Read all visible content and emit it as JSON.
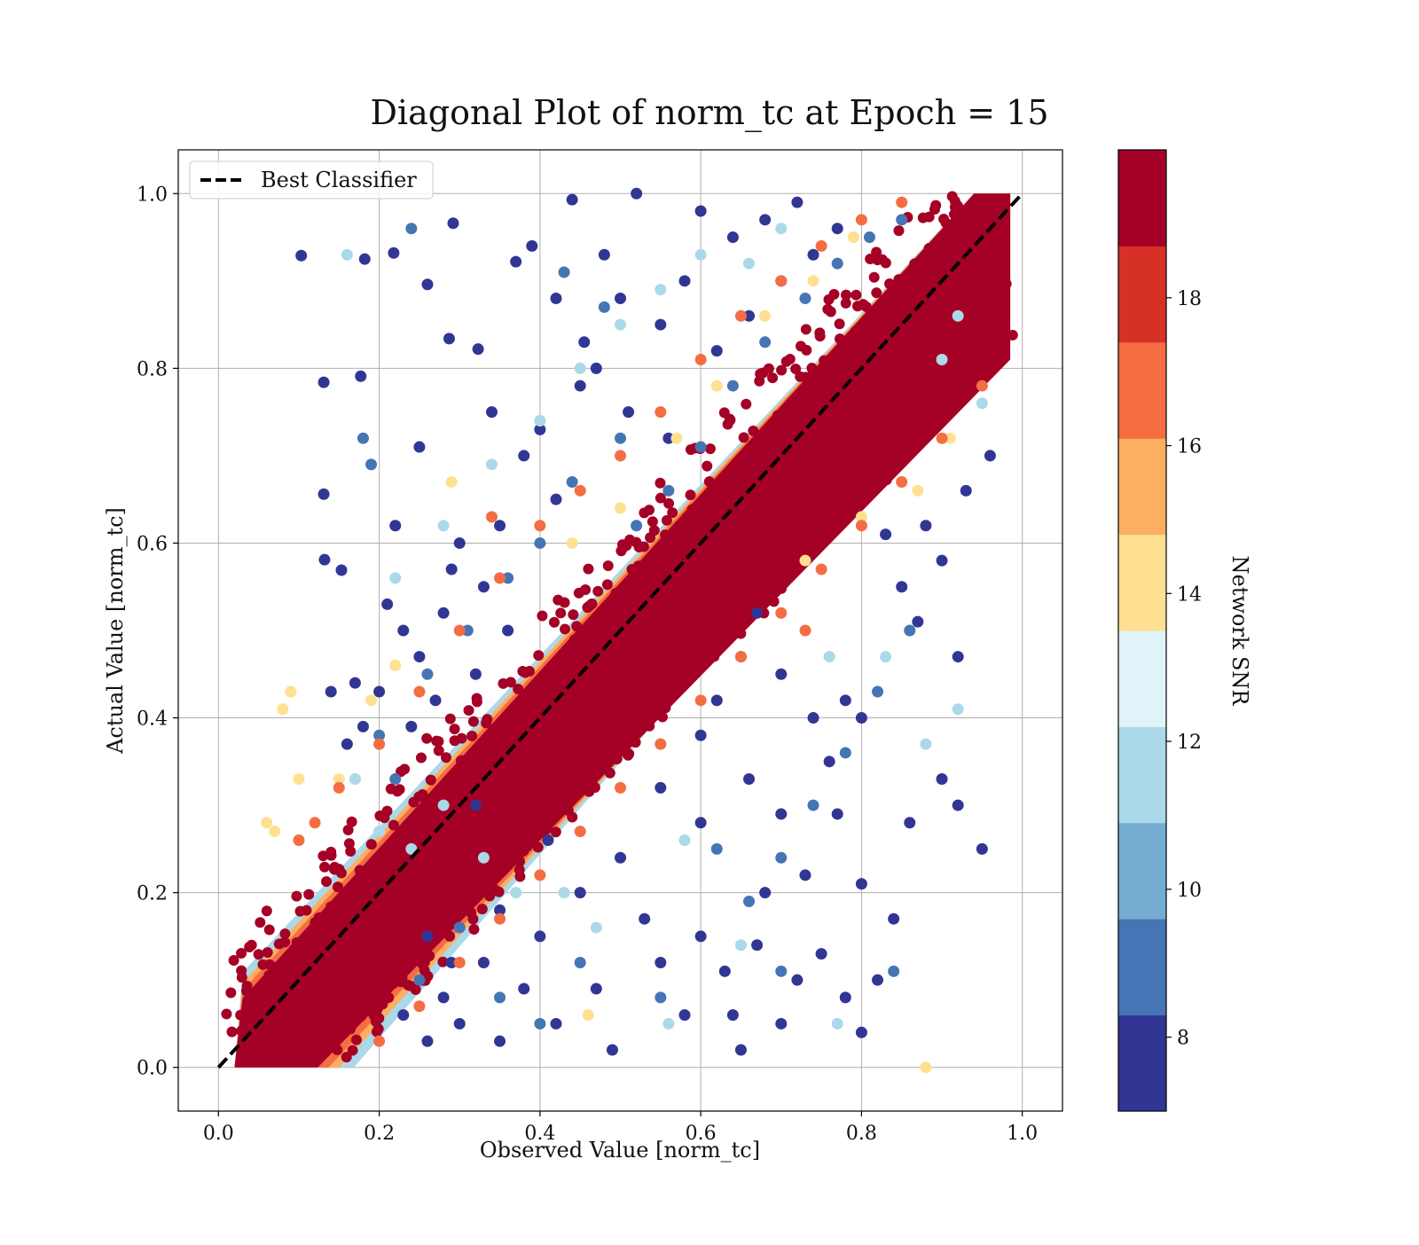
{
  "chart_data": {
    "type": "scatter",
    "title": "Diagonal Plot of norm_tc at Epoch = 15",
    "xlabel": "Observed Value [norm_tc]",
    "ylabel": "Actual Value [norm_tc]",
    "xlim": [
      -0.05,
      1.05
    ],
    "ylim": [
      -0.05,
      1.05
    ],
    "xticks": [
      "0.0",
      "0.2",
      "0.4",
      "0.6",
      "0.8",
      "1.0"
    ],
    "yticks": [
      "0.0",
      "0.2",
      "0.4",
      "0.6",
      "0.8",
      "1.0"
    ],
    "grid": true,
    "legend": {
      "placement": "top-left",
      "entries": [
        "Best Classifier"
      ]
    },
    "reference_line": {
      "name": "Best Classifier",
      "style": "dashed",
      "color": "#000000",
      "x": [
        0.0,
        1.0
      ],
      "y": [
        0.0,
        1.0
      ]
    },
    "colorbar": {
      "label": "Network SNR",
      "range": [
        7,
        20
      ],
      "ticks": [
        "8",
        "10",
        "12",
        "14",
        "16",
        "18"
      ],
      "tick_values": [
        8,
        10,
        12,
        14,
        16,
        18
      ],
      "colors": [
        "#313695",
        "#4575b4",
        "#74add1",
        "#abd9e9",
        "#e0f3f8",
        "#fee090",
        "#fdae61",
        "#f46d43",
        "#d73027",
        "#a50026"
      ]
    },
    "series": [
      {
        "snr_level": "low (7-9)",
        "color": "#313695",
        "points": [
          [
            0.103,
            0.929
          ],
          [
            0.131,
            0.784
          ],
          [
            0.177,
            0.791
          ],
          [
            0.131,
            0.656
          ],
          [
            0.132,
            0.581
          ],
          [
            0.153,
            0.569
          ],
          [
            0.182,
            0.925
          ],
          [
            0.218,
            0.932
          ],
          [
            0.26,
            0.896
          ],
          [
            0.287,
            0.834
          ],
          [
            0.323,
            0.822
          ],
          [
            0.292,
            0.966
          ],
          [
            0.37,
            0.922
          ],
          [
            0.44,
            0.993
          ],
          [
            0.52,
            1.0
          ],
          [
            0.455,
            0.83
          ],
          [
            0.4,
            0.73
          ],
          [
            0.34,
            0.75
          ],
          [
            0.25,
            0.71
          ],
          [
            0.22,
            0.62
          ],
          [
            0.21,
            0.53
          ],
          [
            0.2,
            0.43
          ],
          [
            0.18,
            0.39
          ],
          [
            0.14,
            0.43
          ],
          [
            0.53,
            0.17
          ],
          [
            0.55,
            0.12
          ],
          [
            0.6,
            0.15
          ],
          [
            0.63,
            0.11
          ],
          [
            0.58,
            0.06
          ],
          [
            0.65,
            0.02
          ],
          [
            0.7,
            0.05
          ],
          [
            0.72,
            0.1
          ],
          [
            0.75,
            0.13
          ],
          [
            0.78,
            0.08
          ],
          [
            0.8,
            0.04
          ],
          [
            0.82,
            0.1
          ],
          [
            0.84,
            0.17
          ],
          [
            0.86,
            0.28
          ],
          [
            0.9,
            0.33
          ],
          [
            0.92,
            0.3
          ],
          [
            0.95,
            0.25
          ],
          [
            0.76,
            0.35
          ],
          [
            0.74,
            0.4
          ],
          [
            0.7,
            0.45
          ],
          [
            0.66,
            0.33
          ],
          [
            0.6,
            0.28
          ],
          [
            0.55,
            0.32
          ],
          [
            0.5,
            0.24
          ],
          [
            0.45,
            0.2
          ],
          [
            0.4,
            0.15
          ],
          [
            0.38,
            0.09
          ],
          [
            0.35,
            0.03
          ],
          [
            0.42,
            0.05
          ],
          [
            0.47,
            0.09
          ],
          [
            0.49,
            0.02
          ],
          [
            0.3,
            0.05
          ],
          [
            0.28,
            0.08
          ],
          [
            0.33,
            0.12
          ],
          [
            0.26,
            0.03
          ],
          [
            0.23,
            0.06
          ],
          [
            0.83,
            0.61
          ],
          [
            0.85,
            0.55
          ],
          [
            0.87,
            0.51
          ],
          [
            0.9,
            0.58
          ],
          [
            0.93,
            0.66
          ],
          [
            0.88,
            0.62
          ],
          [
            0.96,
            0.7
          ],
          [
            0.6,
            0.98
          ],
          [
            0.64,
            0.95
          ],
          [
            0.68,
            0.97
          ],
          [
            0.72,
            0.99
          ],
          [
            0.58,
            0.9
          ],
          [
            0.55,
            0.85
          ],
          [
            0.5,
            0.88
          ],
          [
            0.48,
            0.93
          ],
          [
            0.45,
            0.78
          ],
          [
            0.42,
            0.65
          ],
          [
            0.38,
            0.7
          ],
          [
            0.35,
            0.62
          ],
          [
            0.3,
            0.6
          ],
          [
            0.28,
            0.52
          ],
          [
            0.25,
            0.47
          ],
          [
            0.32,
            0.45
          ],
          [
            0.6,
            0.38
          ],
          [
            0.62,
            0.42
          ],
          [
            0.65,
            0.47
          ],
          [
            0.67,
            0.52
          ],
          [
            0.78,
            0.42
          ],
          [
            0.8,
            0.4
          ],
          [
            0.92,
            0.47
          ],
          [
            0.68,
            0.2
          ],
          [
            0.73,
            0.22
          ],
          [
            0.77,
            0.29
          ],
          [
            0.8,
            0.21
          ],
          [
            0.64,
            0.06
          ],
          [
            0.67,
            0.14
          ],
          [
            0.7,
            0.29
          ],
          [
            0.26,
            0.15
          ],
          [
            0.29,
            0.12
          ],
          [
            0.35,
            0.18
          ],
          [
            0.41,
            0.26
          ],
          [
            0.32,
            0.3
          ],
          [
            0.39,
            0.94
          ],
          [
            0.42,
            0.88
          ],
          [
            0.47,
            0.8
          ],
          [
            0.51,
            0.75
          ],
          [
            0.56,
            0.72
          ],
          [
            0.62,
            0.82
          ],
          [
            0.66,
            0.86
          ],
          [
            0.7,
            0.9
          ],
          [
            0.74,
            0.93
          ],
          [
            0.77,
            0.96
          ],
          [
            0.16,
            0.37
          ],
          [
            0.17,
            0.44
          ],
          [
            0.24,
            0.39
          ],
          [
            0.27,
            0.42
          ],
          [
            0.23,
            0.5
          ],
          [
            0.29,
            0.57
          ],
          [
            0.33,
            0.55
          ],
          [
            0.36,
            0.5
          ]
        ]
      },
      {
        "snr_level": "lower-mid (9-11)",
        "color": "#4575b4",
        "points": [
          [
            0.18,
            0.72
          ],
          [
            0.19,
            0.69
          ],
          [
            0.24,
            0.96
          ],
          [
            0.43,
            0.91
          ],
          [
            0.48,
            0.87
          ],
          [
            0.52,
            0.62
          ],
          [
            0.56,
            0.66
          ],
          [
            0.6,
            0.71
          ],
          [
            0.64,
            0.78
          ],
          [
            0.68,
            0.83
          ],
          [
            0.73,
            0.88
          ],
          [
            0.77,
            0.92
          ],
          [
            0.81,
            0.95
          ],
          [
            0.85,
            0.97
          ],
          [
            0.62,
            0.25
          ],
          [
            0.66,
            0.19
          ],
          [
            0.7,
            0.24
          ],
          [
            0.74,
            0.3
          ],
          [
            0.78,
            0.36
          ],
          [
            0.82,
            0.43
          ],
          [
            0.86,
            0.5
          ],
          [
            0.84,
            0.11
          ],
          [
            0.7,
            0.11
          ],
          [
            0.55,
            0.08
          ],
          [
            0.45,
            0.12
          ],
          [
            0.4,
            0.05
          ],
          [
            0.35,
            0.08
          ],
          [
            0.3,
            0.16
          ],
          [
            0.25,
            0.1
          ],
          [
            0.22,
            0.33
          ],
          [
            0.2,
            0.38
          ],
          [
            0.26,
            0.45
          ],
          [
            0.31,
            0.5
          ],
          [
            0.36,
            0.56
          ],
          [
            0.4,
            0.6
          ],
          [
            0.44,
            0.67
          ],
          [
            0.5,
            0.72
          ]
        ]
      },
      {
        "snr_level": "mid (11-13)",
        "color": "#abd9e9",
        "points": [
          [
            0.16,
            0.93
          ],
          [
            0.65,
            0.14
          ],
          [
            0.77,
            0.05
          ],
          [
            0.92,
            0.41
          ],
          [
            0.88,
            0.37
          ],
          [
            0.83,
            0.47
          ],
          [
            0.56,
            0.05
          ],
          [
            0.58,
            0.26
          ],
          [
            0.47,
            0.16
          ],
          [
            0.43,
            0.2
          ],
          [
            0.37,
            0.2
          ],
          [
            0.33,
            0.24
          ],
          [
            0.28,
            0.3
          ],
          [
            0.24,
            0.25
          ],
          [
            0.2,
            0.27
          ],
          [
            0.17,
            0.33
          ],
          [
            0.22,
            0.56
          ],
          [
            0.28,
            0.62
          ],
          [
            0.34,
            0.69
          ],
          [
            0.4,
            0.74
          ],
          [
            0.45,
            0.8
          ],
          [
            0.5,
            0.85
          ],
          [
            0.55,
            0.89
          ],
          [
            0.6,
            0.93
          ],
          [
            0.66,
            0.92
          ],
          [
            0.7,
            0.96
          ],
          [
            0.92,
            0.86
          ],
          [
            0.9,
            0.81
          ],
          [
            0.76,
            0.47
          ],
          [
            0.95,
            0.76
          ]
        ]
      },
      {
        "snr_level": "upper-mid (13-16)",
        "color": "#fee090",
        "points": [
          [
            0.09,
            0.43
          ],
          [
            0.08,
            0.41
          ],
          [
            0.06,
            0.28
          ],
          [
            0.07,
            0.27
          ],
          [
            0.1,
            0.33
          ],
          [
            0.46,
            0.06
          ],
          [
            0.88,
            0.0
          ],
          [
            0.91,
            0.72
          ],
          [
            0.87,
            0.66
          ],
          [
            0.8,
            0.63
          ],
          [
            0.73,
            0.58
          ],
          [
            0.29,
            0.67
          ],
          [
            0.22,
            0.46
          ],
          [
            0.19,
            0.42
          ],
          [
            0.15,
            0.33
          ],
          [
            0.44,
            0.6
          ],
          [
            0.5,
            0.64
          ],
          [
            0.57,
            0.72
          ],
          [
            0.62,
            0.78
          ],
          [
            0.68,
            0.86
          ],
          [
            0.74,
            0.9
          ],
          [
            0.79,
            0.95
          ]
        ]
      },
      {
        "snr_level": "high (16-19)",
        "color": "#f46d43",
        "points": [
          [
            0.1,
            0.26
          ],
          [
            0.12,
            0.28
          ],
          [
            0.15,
            0.32
          ],
          [
            0.2,
            0.37
          ],
          [
            0.25,
            0.43
          ],
          [
            0.3,
            0.5
          ],
          [
            0.35,
            0.56
          ],
          [
            0.4,
            0.62
          ],
          [
            0.45,
            0.66
          ],
          [
            0.5,
            0.7
          ],
          [
            0.55,
            0.75
          ],
          [
            0.6,
            0.81
          ],
          [
            0.65,
            0.86
          ],
          [
            0.7,
            0.9
          ],
          [
            0.75,
            0.94
          ],
          [
            0.8,
            0.97
          ],
          [
            0.85,
            0.99
          ],
          [
            0.2,
            0.03
          ],
          [
            0.25,
            0.07
          ],
          [
            0.3,
            0.12
          ],
          [
            0.35,
            0.17
          ],
          [
            0.4,
            0.22
          ],
          [
            0.45,
            0.27
          ],
          [
            0.5,
            0.32
          ],
          [
            0.55,
            0.37
          ],
          [
            0.6,
            0.42
          ],
          [
            0.65,
            0.47
          ],
          [
            0.7,
            0.52
          ],
          [
            0.75,
            0.57
          ],
          [
            0.8,
            0.62
          ],
          [
            0.85,
            0.67
          ],
          [
            0.9,
            0.72
          ],
          [
            0.95,
            0.78
          ],
          [
            0.34,
            0.63
          ],
          [
            0.73,
            0.5
          ]
        ]
      }
    ],
    "dense_band": {
      "snr_level": "very high (19-20)",
      "color": "#a50026",
      "center": [
        [
          0.02,
          0.0
        ],
        [
          0.98,
          1.0
        ]
      ],
      "note": "dense region of points along the diagonal"
    }
  }
}
